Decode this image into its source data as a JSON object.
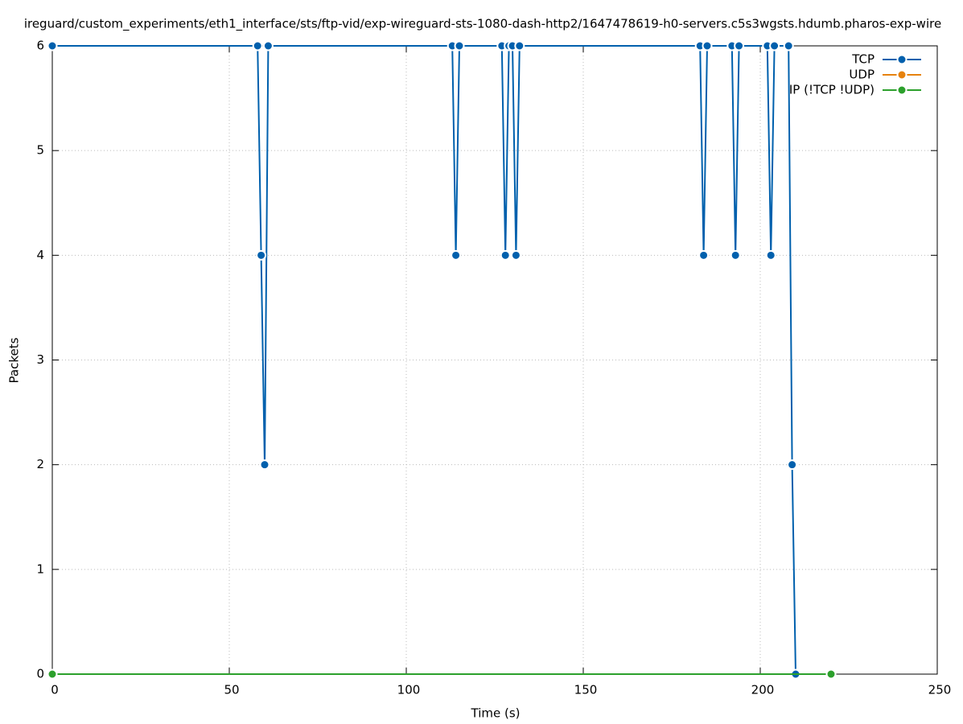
{
  "chart_data": {
    "type": "line",
    "title": "ireguard/custom_experiments/eth1_interface/sts/ftp-vid/exp-wireguard-sts-1080-dash-http2/1647478619-h0-servers.c5s3wgsts.hdumb.pharos-exp-wire",
    "x_label": "Time (s)",
    "y_label": "Packets",
    "xlim": [
      0,
      250
    ],
    "xticks": [
      0,
      50,
      100,
      150,
      200,
      250
    ],
    "ylim": [
      0,
      6
    ],
    "yticks": [
      0,
      1,
      2,
      3,
      4,
      5,
      6
    ],
    "grid": true,
    "legend": "top-right",
    "series": [
      {
        "name": "TCP",
        "color": "#0060ad",
        "x": [
          0,
          58,
          59,
          60,
          61,
          113,
          114,
          115,
          127,
          128,
          129,
          130,
          131,
          132,
          183,
          184,
          185,
          192,
          193,
          194,
          202,
          203,
          204,
          208,
          209,
          210
        ],
        "values": [
          6,
          6,
          4,
          2,
          6,
          6,
          4,
          6,
          6,
          4,
          6,
          6,
          4,
          6,
          6,
          4,
          6,
          6,
          4,
          6,
          6,
          4,
          6,
          6,
          2,
          0
        ]
      },
      {
        "name": "UDP",
        "color": "#e6820e",
        "x": [],
        "values": []
      },
      {
        "name": "IP (!TCP  !UDP)",
        "color": "#2ca02c",
        "x": [
          0,
          220
        ],
        "values": [
          0,
          0
        ]
      }
    ]
  }
}
